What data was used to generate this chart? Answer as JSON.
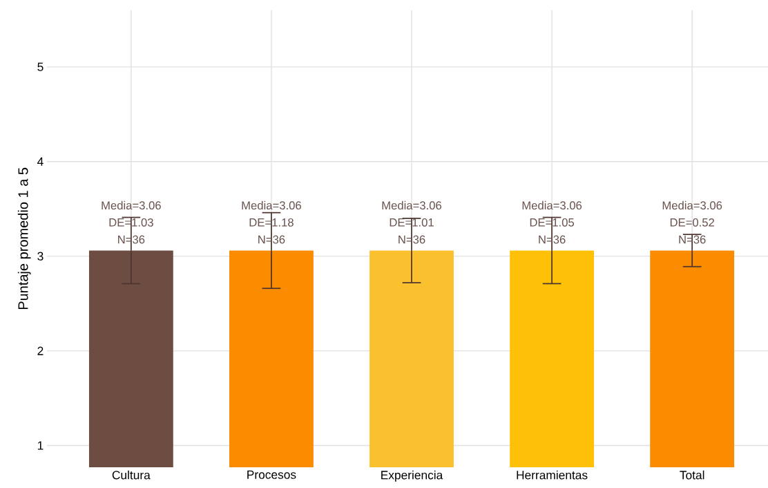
{
  "chart_data": {
    "type": "bar",
    "ylabel": "Puntaje promedio 1 a 5",
    "categories": [
      "Cultura",
      "Procesos",
      "Experiencia",
      "Herramientas",
      "Total"
    ],
    "values": [
      3.06,
      3.06,
      3.06,
      3.06,
      3.06
    ],
    "colors": [
      "#6d4c41",
      "#fb8c00",
      "#fbc02d",
      "#ffc107",
      "#fb8c00"
    ],
    "errors": [
      0.35,
      0.4,
      0.34,
      0.35,
      0.17
    ],
    "value_labels": [
      "Media=3.06 DE=1.03 N=36",
      "Media=3.06 DE=1.18 N=36",
      "Media=3.06 DE=1.01 N=36",
      "Media=3.06 DE=1.05 N=36",
      "Media=3.06 DE=0.52 N=36"
    ],
    "ylim": [
      0.77,
      5.6
    ],
    "yticks": [
      1,
      2,
      3,
      4,
      5
    ],
    "grid": true
  }
}
